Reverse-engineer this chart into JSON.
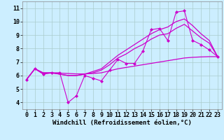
{
  "xlabel": "Windchill (Refroidissement éolien,°C)",
  "background_color": "#cceeff",
  "line_color": "#cc00cc",
  "grid_color": "#aacccc",
  "xlim": [
    -0.5,
    23.5
  ],
  "ylim": [
    3.5,
    11.5
  ],
  "yticks": [
    4,
    5,
    6,
    7,
    8,
    9,
    10,
    11
  ],
  "xticks": [
    0,
    1,
    2,
    3,
    4,
    5,
    6,
    7,
    8,
    9,
    10,
    11,
    12,
    13,
    14,
    15,
    16,
    17,
    18,
    19,
    20,
    21,
    22,
    23
  ],
  "lines": [
    {
      "x": [
        0,
        1,
        2,
        3,
        4,
        5,
        6,
        7,
        8,
        9,
        10,
        11,
        12,
        13,
        14,
        15,
        16,
        17,
        18,
        19,
        20,
        21,
        22,
        23
      ],
      "y": [
        5.7,
        6.5,
        6.1,
        6.2,
        6.2,
        4.0,
        4.5,
        6.0,
        5.8,
        5.6,
        6.4,
        7.2,
        6.9,
        6.9,
        7.8,
        9.4,
        9.5,
        8.6,
        10.7,
        10.8,
        8.6,
        8.3,
        7.9,
        7.4
      ],
      "marker": "D",
      "markersize": 2.0,
      "lw": 0.8
    },
    {
      "x": [
        0,
        1,
        2,
        3,
        4,
        5,
        6,
        7,
        8,
        9,
        10,
        11,
        12,
        13,
        14,
        15,
        16,
        17,
        18,
        19,
        20,
        21,
        22,
        23
      ],
      "y": [
        5.7,
        6.5,
        6.15,
        6.18,
        6.18,
        6.15,
        6.12,
        6.12,
        6.15,
        6.2,
        6.35,
        6.5,
        6.6,
        6.7,
        6.8,
        6.9,
        7.0,
        7.1,
        7.2,
        7.3,
        7.35,
        7.38,
        7.4,
        7.4
      ],
      "marker": null,
      "markersize": 0,
      "lw": 0.9
    },
    {
      "x": [
        0,
        1,
        2,
        3,
        4,
        5,
        6,
        7,
        8,
        9,
        10,
        11,
        12,
        13,
        14,
        15,
        16,
        17,
        18,
        19,
        20,
        21,
        22,
        23
      ],
      "y": [
        5.7,
        6.5,
        6.2,
        6.2,
        6.1,
        6.0,
        6.0,
        6.1,
        6.2,
        6.4,
        6.8,
        7.3,
        7.6,
        8.0,
        8.3,
        8.7,
        9.0,
        9.1,
        9.5,
        9.8,
        9.3,
        8.8,
        8.4,
        7.4
      ],
      "marker": null,
      "markersize": 0,
      "lw": 0.9
    },
    {
      "x": [
        0,
        1,
        2,
        3,
        4,
        5,
        6,
        7,
        8,
        9,
        10,
        11,
        12,
        13,
        14,
        15,
        16,
        17,
        18,
        19,
        20,
        21,
        22,
        23
      ],
      "y": [
        5.7,
        6.5,
        6.2,
        6.2,
        6.1,
        6.0,
        6.0,
        6.1,
        6.3,
        6.5,
        7.0,
        7.5,
        7.9,
        8.3,
        8.7,
        9.1,
        9.4,
        9.6,
        10.0,
        10.2,
        9.7,
        9.1,
        8.6,
        7.4
      ],
      "marker": null,
      "markersize": 0,
      "lw": 0.9
    }
  ],
  "tick_fontsize": 6.0,
  "label_fontsize": 6.5
}
